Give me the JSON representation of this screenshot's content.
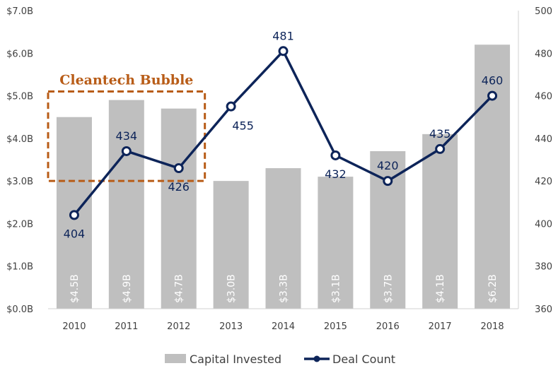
{
  "chart_data": {
    "type": "bar+line",
    "categories": [
      "2010",
      "2011",
      "2012",
      "2013",
      "2014",
      "2015",
      "2016",
      "2017",
      "2018"
    ],
    "series": [
      {
        "name": "Capital Invested",
        "type": "bar",
        "axis": "left",
        "values": [
          4.5,
          4.9,
          4.7,
          3.0,
          3.3,
          3.1,
          3.7,
          4.1,
          6.2
        ],
        "labels": [
          "$4.5B",
          "$4.9B",
          "$4.7B",
          "$3.0B",
          "$3.3B",
          "$3.1B",
          "$3.7B",
          "$4.1B",
          "$6.2B"
        ],
        "color": "#bfbfbf"
      },
      {
        "name": "Deal Count",
        "type": "line",
        "axis": "right",
        "values": [
          404,
          434,
          426,
          455,
          481,
          432,
          420,
          435,
          460
        ],
        "labels": [
          "404",
          "434",
          "426",
          "455",
          "481",
          "432",
          "420",
          "435",
          "460"
        ],
        "color": "#0d2459"
      }
    ],
    "y_left": {
      "ylim": [
        0,
        7
      ],
      "ticks": [
        0,
        1,
        2,
        3,
        4,
        5,
        6,
        7
      ],
      "tick_labels": [
        "$0.0B",
        "$1.0B",
        "$2.0B",
        "$3.0B",
        "$4.0B",
        "$5.0B",
        "$6.0B",
        "$7.0B"
      ]
    },
    "y_right": {
      "ylim": [
        360,
        500
      ],
      "ticks": [
        360,
        380,
        400,
        420,
        440,
        460,
        480,
        500
      ],
      "tick_labels": [
        "360",
        "380",
        "400",
        "420",
        "440",
        "460",
        "480",
        "500"
      ]
    },
    "annotation": {
      "text": "Cleantech Bubble",
      "categories_spanned": [
        "2010",
        "2011",
        "2012"
      ],
      "y_range_left": [
        3.0,
        5.1
      ],
      "color": "#b85c17"
    },
    "legend": [
      "Capital Invested",
      "Deal Count"
    ],
    "legend_position": "bottom-center",
    "grid": false
  }
}
